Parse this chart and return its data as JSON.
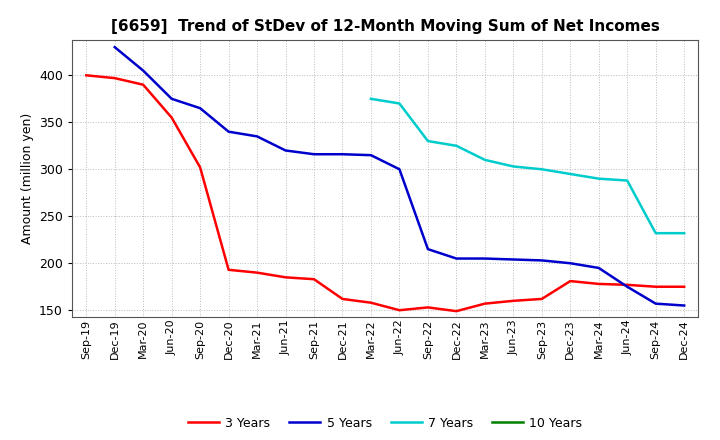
{
  "title": "[6659]  Trend of StDev of 12-Month Moving Sum of Net Incomes",
  "ylabel": "Amount (million yen)",
  "x_labels": [
    "Sep-19",
    "Dec-19",
    "Mar-20",
    "Jun-20",
    "Sep-20",
    "Dec-20",
    "Mar-21",
    "Jun-21",
    "Sep-21",
    "Dec-21",
    "Mar-22",
    "Jun-22",
    "Sep-22",
    "Dec-22",
    "Mar-23",
    "Jun-23",
    "Sep-23",
    "Dec-23",
    "Mar-24",
    "Jun-24",
    "Sep-24",
    "Dec-24"
  ],
  "series_3y": {
    "label": "3 Years",
    "color": "#FF0000",
    "data_x": [
      0,
      1,
      2,
      3,
      4,
      5,
      6,
      7,
      8,
      9,
      10,
      11,
      12,
      13,
      14,
      15,
      16,
      17,
      18,
      19,
      20,
      21
    ],
    "data_y": [
      400,
      397,
      390,
      355,
      302,
      193,
      190,
      185,
      183,
      162,
      158,
      150,
      153,
      149,
      157,
      160,
      162,
      181,
      178,
      177,
      175,
      175
    ]
  },
  "series_5y": {
    "label": "5 Years",
    "color": "#0000CD",
    "data_x": [
      1,
      2,
      3,
      4,
      5,
      6,
      7,
      8,
      9,
      10,
      11,
      12,
      13,
      14,
      15,
      16,
      17,
      18,
      19,
      20,
      21
    ],
    "data_y": [
      430,
      405,
      375,
      365,
      340,
      335,
      320,
      316,
      316,
      315,
      300,
      215,
      205,
      205,
      204,
      203,
      200,
      195,
      175,
      157,
      155
    ]
  },
  "series_7y": {
    "label": "7 Years",
    "color": "#00CCCC",
    "data_x": [
      10,
      11,
      12,
      13,
      14,
      15,
      16,
      17,
      18,
      19,
      20,
      21
    ],
    "data_y": [
      375,
      370,
      330,
      325,
      310,
      303,
      300,
      295,
      290,
      288,
      232,
      232
    ]
  },
  "series_10y": {
    "label": "10 Years",
    "color": "#008000",
    "data_x": [],
    "data_y": []
  },
  "ylim": [
    143,
    438
  ],
  "yticks": [
    150,
    200,
    250,
    300,
    350,
    400
  ],
  "background_color": "#ffffff",
  "grid_color": "#aaaaaa",
  "title_fontsize": 11,
  "axis_fontsize": 9,
  "tick_fontsize": 8,
  "linewidth": 1.8
}
